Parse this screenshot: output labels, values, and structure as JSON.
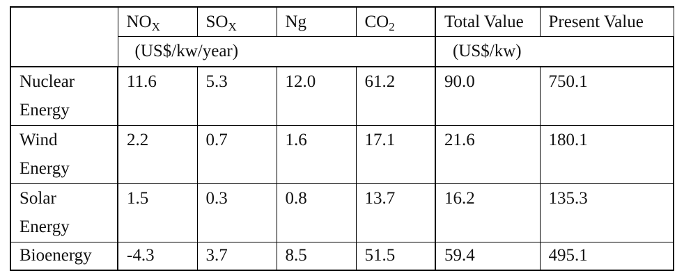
{
  "table": {
    "header": {
      "columns": [
        {
          "base": "NO",
          "sub": "X"
        },
        {
          "base": "SO",
          "sub": "X"
        },
        {
          "base": "Ng",
          "sub": ""
        },
        {
          "base": "CO",
          "sub": "2"
        },
        {
          "base": "Total Value",
          "sub": ""
        },
        {
          "base": "Present Value",
          "sub": ""
        }
      ],
      "unit_left": "(US$/kw/year)",
      "unit_right": "(US$/kw)"
    },
    "rows": [
      {
        "label_line1": "Nuclear",
        "label_line2": "Energy",
        "values": [
          "11.6",
          "5.3",
          "12.0",
          "61.2",
          "90.0",
          "750.1"
        ]
      },
      {
        "label_line1": "Wind",
        "label_line2": "Energy",
        "values": [
          "2.2",
          "0.7",
          "1.6",
          "17.1",
          "21.6",
          "180.1"
        ]
      },
      {
        "label_line1": "Solar",
        "label_line2": "Energy",
        "values": [
          "1.5",
          "0.3",
          "0.8",
          "13.7",
          "16.2",
          "135.3"
        ]
      },
      {
        "label_line1": "Bioenergy",
        "label_line2": "",
        "values": [
          "-4.3",
          "3.7",
          "8.5",
          "51.5",
          "59.4",
          "495.1"
        ]
      }
    ]
  }
}
